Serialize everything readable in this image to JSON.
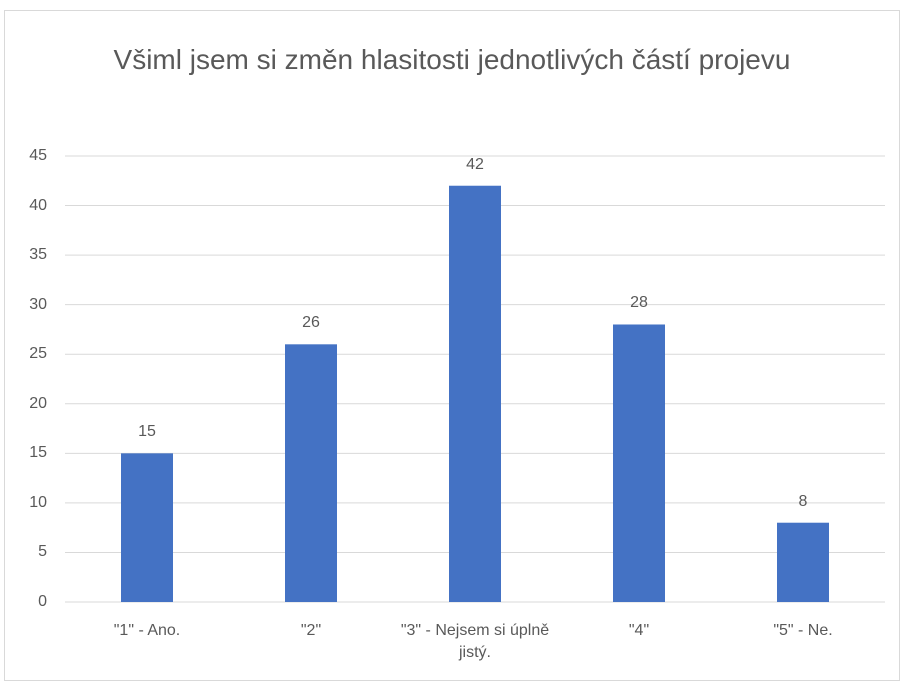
{
  "chart_data": {
    "type": "bar",
    "title": "Všiml jsem si změn hlasitosti jednotlivých částí projevu",
    "categories": [
      "\"1\" - Ano.",
      "\"2\"",
      "\"3\" - Nejsem si úplně jistý.",
      "\"4\"",
      "\"5\" - Ne."
    ],
    "values": [
      15,
      26,
      42,
      28,
      8
    ],
    "color": "#4472c4",
    "ylim": [
      0,
      45
    ],
    "yticks": [
      0,
      5,
      10,
      15,
      20,
      25,
      30,
      35,
      40,
      45
    ],
    "grid": true
  }
}
